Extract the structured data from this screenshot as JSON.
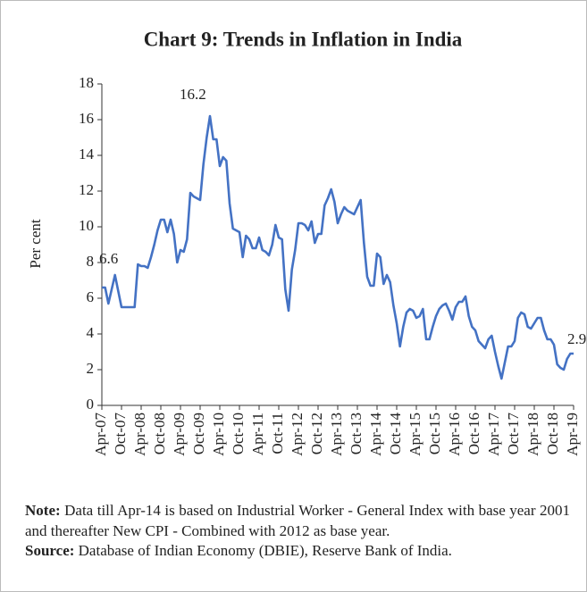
{
  "chart_data": {
    "type": "line",
    "title": "Chart 9: Trends in Inflation in India",
    "ylabel": "Per cent",
    "categories": [
      "Apr-07",
      null,
      null,
      null,
      null,
      null,
      "Oct-07",
      null,
      null,
      null,
      null,
      null,
      "Apr-08",
      null,
      null,
      null,
      null,
      null,
      "Oct-08",
      null,
      null,
      null,
      null,
      null,
      "Apr-09",
      null,
      null,
      null,
      null,
      null,
      "Oct-09",
      null,
      null,
      null,
      null,
      null,
      "Apr-10",
      null,
      null,
      null,
      null,
      null,
      "Oct-10",
      null,
      null,
      null,
      null,
      null,
      "Apr-11",
      null,
      null,
      null,
      null,
      null,
      "Oct-11",
      null,
      null,
      null,
      null,
      null,
      "Apr-12",
      null,
      null,
      null,
      null,
      null,
      "Oct-12",
      null,
      null,
      null,
      null,
      null,
      "Apr-13",
      null,
      null,
      null,
      null,
      null,
      "Oct-13",
      null,
      null,
      null,
      null,
      null,
      "Apr-14",
      null,
      null,
      null,
      null,
      null,
      "Oct-14",
      null,
      null,
      null,
      null,
      null,
      "Apr-15",
      null,
      null,
      null,
      null,
      null,
      "Oct-15",
      null,
      null,
      null,
      null,
      null,
      "Apr-16",
      null,
      null,
      null,
      null,
      null,
      "Oct-16",
      null,
      null,
      null,
      null,
      null,
      "Apr-17",
      null,
      null,
      null,
      null,
      null,
      "Oct-17",
      null,
      null,
      null,
      null,
      null,
      "Apr-18",
      null,
      null,
      null,
      null,
      null,
      "Oct-18",
      null,
      null,
      null,
      null,
      null,
      "Apr-19"
    ],
    "series": [
      {
        "color": "#4472c4",
        "values": [
          6.6,
          6.6,
          5.7,
          6.5,
          7.3,
          6.4,
          5.5,
          5.5,
          5.5,
          5.5,
          5.5,
          7.9,
          7.8,
          7.8,
          7.7,
          8.3,
          9.0,
          9.8,
          10.4,
          10.4,
          9.7,
          10.4,
          9.6,
          8.0,
          8.7,
          8.6,
          9.3,
          11.9,
          11.7,
          11.6,
          11.5,
          13.5,
          15.0,
          16.2,
          14.9,
          14.9,
          13.4,
          13.9,
          13.7,
          11.3,
          9.9,
          9.8,
          9.7,
          8.3,
          9.5,
          9.3,
          8.8,
          8.8,
          9.4,
          8.7,
          8.6,
          8.4,
          9.0,
          10.1,
          9.4,
          9.3,
          6.5,
          5.3,
          7.6,
          8.7,
          10.2,
          10.2,
          10.1,
          9.8,
          10.3,
          9.1,
          9.6,
          9.6,
          11.2,
          11.6,
          12.1,
          11.4,
          10.2,
          10.7,
          11.1,
          10.9,
          10.8,
          10.7,
          11.1,
          11.5,
          9.1,
          7.2,
          6.7,
          6.7,
          8.5,
          8.3,
          6.8,
          7.3,
          6.9,
          5.6,
          4.6,
          3.3,
          4.4,
          5.2,
          5.4,
          5.3,
          4.9,
          5.0,
          5.4,
          3.7,
          3.7,
          4.4,
          5.0,
          5.4,
          5.6,
          5.7,
          5.3,
          4.8,
          5.5,
          5.8,
          5.8,
          6.1,
          5.0,
          4.4,
          4.2,
          3.6,
          3.4,
          3.2,
          3.7,
          3.9,
          3.0,
          2.2,
          1.5,
          2.4,
          3.3,
          3.3,
          3.6,
          4.9,
          5.2,
          5.1,
          4.4,
          4.3,
          4.6,
          4.9,
          4.9,
          4.2,
          3.7,
          3.7,
          3.4,
          2.3,
          2.1,
          2.0,
          2.6,
          2.9,
          2.9
        ]
      }
    ],
    "annotations": [
      "6.6",
      "16.2",
      "2.9"
    ],
    "ylim": [
      0,
      18
    ],
    "yticks": [
      0,
      2,
      4,
      6,
      8,
      10,
      12,
      14,
      16,
      18
    ],
    "grid": false
  },
  "footnote": {
    "note_label": "Note:",
    "note_text": "Data till Apr-14 is based on Industrial Worker - General Index with base year 2001 and thereafter New CPI - Combined with 2012 as base year.",
    "source_label": "Source:",
    "source_text": "Database of Indian Economy (DBIE), Reserve Bank of India."
  }
}
